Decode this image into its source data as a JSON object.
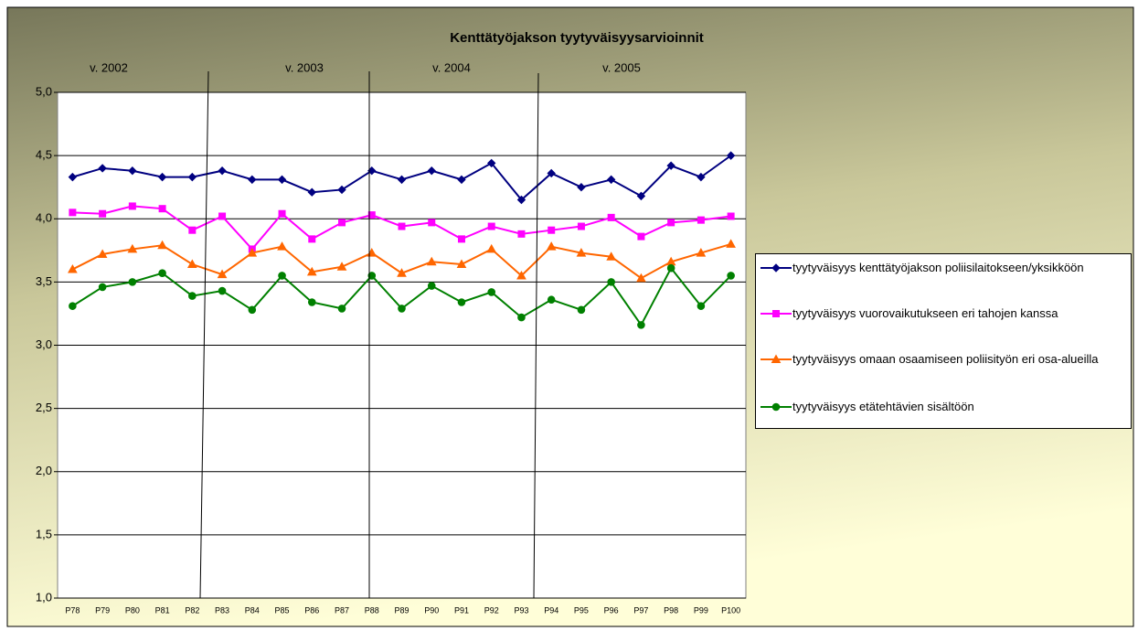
{
  "chart_data": {
    "type": "line",
    "title": "Kenttätyöjakson tyytyväisyysarvioinnit",
    "annotations": [
      "v. 2002",
      "v. 2003",
      "v. 2004",
      "v. 2005"
    ],
    "categories": [
      "P78",
      "P79",
      "P80",
      "P81",
      "P82",
      "P83",
      "P84",
      "P85",
      "P86",
      "P87",
      "P88",
      "P89",
      "P90",
      "P91",
      "P92",
      "P93",
      "P94",
      "P95",
      "P96",
      "P97",
      "P98",
      "P99",
      "P100"
    ],
    "series": [
      {
        "name": "tyytyväisyys kenttätyöjakson poliisilaitokseen/yksikköön",
        "color": "#000080",
        "marker": "diamond",
        "values": [
          4.33,
          4.4,
          4.38,
          4.33,
          4.33,
          4.38,
          4.31,
          4.31,
          4.21,
          4.23,
          4.38,
          4.31,
          4.38,
          4.31,
          4.44,
          4.15,
          4.36,
          4.25,
          4.31,
          4.18,
          4.42,
          4.33,
          4.5
        ]
      },
      {
        "name": "tyytyväisyys vuorovaikutukseen eri tahojen kanssa",
        "color": "#ff00ff",
        "marker": "square",
        "values": [
          4.05,
          4.04,
          4.1,
          4.08,
          3.91,
          4.02,
          3.76,
          4.04,
          3.84,
          3.97,
          4.03,
          3.94,
          3.97,
          3.84,
          3.94,
          3.88,
          3.91,
          3.94,
          4.01,
          3.86,
          3.97,
          3.99,
          4.02
        ]
      },
      {
        "name": "tyytyväisyys omaan osaamiseen poliisityön eri osa-alueilla",
        "color": "#ff6600",
        "marker": "triangle",
        "values": [
          3.6,
          3.72,
          3.76,
          3.79,
          3.64,
          3.56,
          3.73,
          3.78,
          3.58,
          3.62,
          3.73,
          3.57,
          3.66,
          3.64,
          3.76,
          3.55,
          3.78,
          3.73,
          3.7,
          3.53,
          3.66,
          3.73,
          3.8
        ]
      },
      {
        "name": "tyytyväisyys etätehtävien sisältöön",
        "color": "#008000",
        "marker": "circle",
        "values": [
          3.31,
          3.46,
          3.5,
          3.57,
          3.39,
          3.43,
          3.28,
          3.55,
          3.34,
          3.29,
          3.55,
          3.29,
          3.47,
          3.34,
          3.42,
          3.22,
          3.36,
          3.28,
          3.5,
          3.16,
          3.61,
          3.31,
          3.55
        ]
      }
    ],
    "ylim": [
      1,
      5
    ],
    "yticks": [
      {
        "value": 1,
        "label": "1,0"
      },
      {
        "value": 1.5,
        "label": "1,5"
      },
      {
        "value": 2,
        "label": "2,0"
      },
      {
        "value": 2.5,
        "label": "2,5"
      },
      {
        "value": 3,
        "label": "3,0"
      },
      {
        "value": 3.5,
        "label": "3,5"
      },
      {
        "value": 4,
        "label": "4,0"
      },
      {
        "value": 4.5,
        "label": "4,5"
      },
      {
        "value": 5,
        "label": "5,0"
      }
    ],
    "grid": true
  }
}
